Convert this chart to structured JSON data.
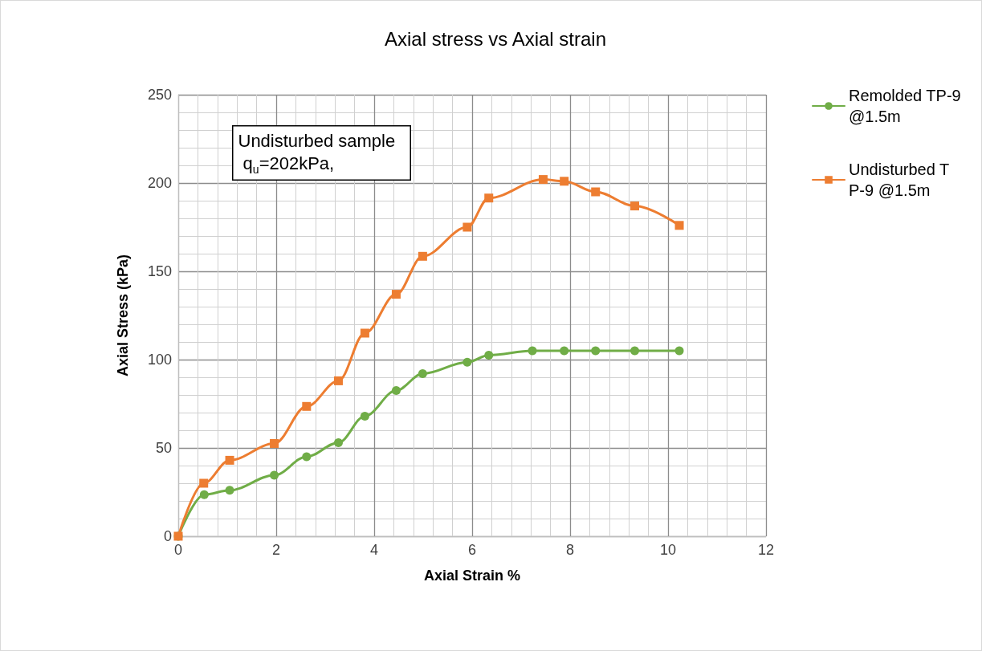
{
  "chart_data": {
    "type": "line",
    "title": "Axial stress vs Axial strain",
    "xlabel": "Axial Strain %",
    "ylabel": "Axial Stress (kPa)",
    "annotations": [
      "Undisturbed sample q$_{u}$=202kPa,"
    ],
    "series": [
      {
        "name": "Remolded TP-9@1.5m",
        "color": "#70ad47",
        "marker": "circle",
        "x": [
          0,
          0.53,
          1.05,
          1.96,
          2.62,
          3.27,
          3.81,
          4.45,
          4.99,
          5.9,
          6.34,
          7.23,
          7.88,
          8.52,
          9.32,
          10.23
        ],
        "values": [
          0,
          23.5,
          26,
          34.5,
          45,
          53,
          68,
          82.5,
          92,
          98.5,
          102.5,
          105,
          105,
          105,
          105,
          105
        ]
      },
      {
        "name": "Undisturbed TP-9 @1.5m",
        "color": "#ed7d31",
        "marker": "square",
        "x": [
          0,
          0.52,
          1.05,
          1.96,
          2.62,
          3.27,
          3.81,
          4.45,
          4.99,
          5.9,
          6.34,
          7.45,
          7.88,
          8.52,
          9.32,
          10.23
        ],
        "values": [
          0,
          30,
          43,
          52.5,
          73.5,
          88,
          115,
          137,
          158.5,
          175,
          191.5,
          202,
          201,
          195,
          187,
          176
        ]
      }
    ],
    "xlim": [
      0,
      12
    ],
    "xticks": [
      0,
      2,
      4,
      6,
      8,
      10,
      12
    ],
    "ylim": [
      0,
      250
    ],
    "yticks": [
      0,
      50,
      100,
      150,
      200,
      250
    ],
    "grid": true,
    "legend": "right",
    "line_style": "solid"
  }
}
